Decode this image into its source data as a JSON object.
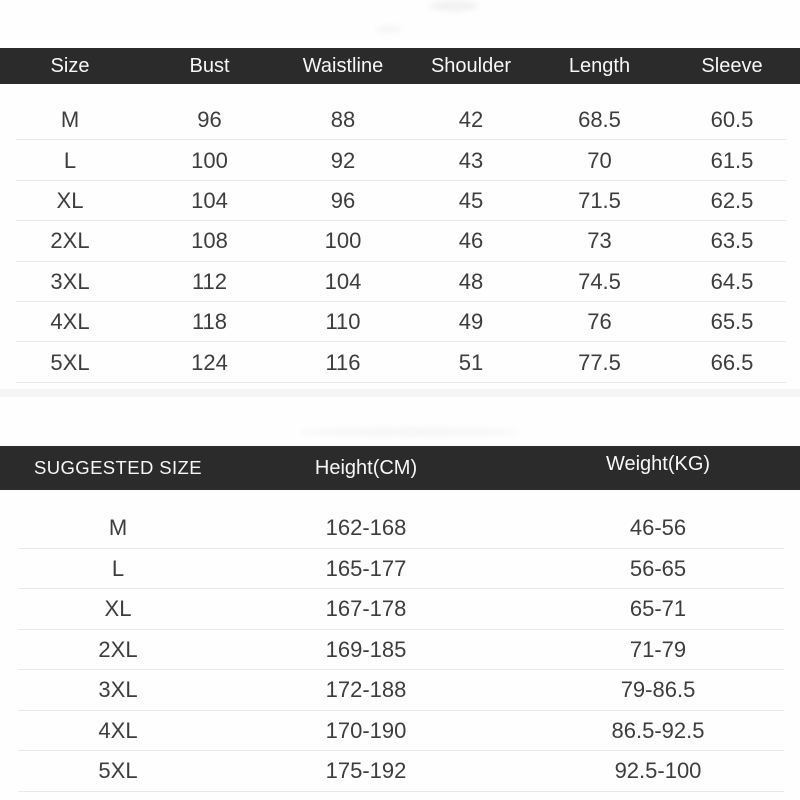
{
  "size_chart": {
    "header": [
      "Size",
      "Bust",
      "Waistline",
      "Shoulder",
      "Length",
      "Sleeve"
    ],
    "rows": [
      [
        "M",
        "96",
        "88",
        "42",
        "68.5",
        "60.5"
      ],
      [
        "L",
        "100",
        "92",
        "43",
        "70",
        "61.5"
      ],
      [
        "XL",
        "104",
        "96",
        "45",
        "71.5",
        "62.5"
      ],
      [
        "2XL",
        "108",
        "100",
        "46",
        "73",
        "63.5"
      ],
      [
        "3XL",
        "112",
        "104",
        "48",
        "74.5",
        "64.5"
      ],
      [
        "4XL",
        "118",
        "110",
        "49",
        "76",
        "65.5"
      ],
      [
        "5XL",
        "124",
        "116",
        "51",
        "77.5",
        "66.5"
      ]
    ]
  },
  "suggested_chart": {
    "header": [
      "SUGGESTED SIZE",
      "Height(CM)",
      "Weight(KG)"
    ],
    "rows": [
      [
        "M",
        "162-168",
        "46-56"
      ],
      [
        "L",
        "165-177",
        "56-65"
      ],
      [
        "XL",
        "167-178",
        "65-71"
      ],
      [
        "2XL",
        "169-185",
        "71-79"
      ],
      [
        "3XL",
        "172-188",
        "79-86.5"
      ],
      [
        "4XL",
        "170-190",
        "86.5-92.5"
      ],
      [
        "5XL",
        "175-192",
        "92.5-100"
      ]
    ]
  },
  "colors": {
    "header_bar_bg": "#2b2b2b",
    "header_bar_text": "#f7f7f7",
    "body_text": "#3d3d3d",
    "row_divider": "#e9e9e9",
    "background": "#fefefe"
  }
}
